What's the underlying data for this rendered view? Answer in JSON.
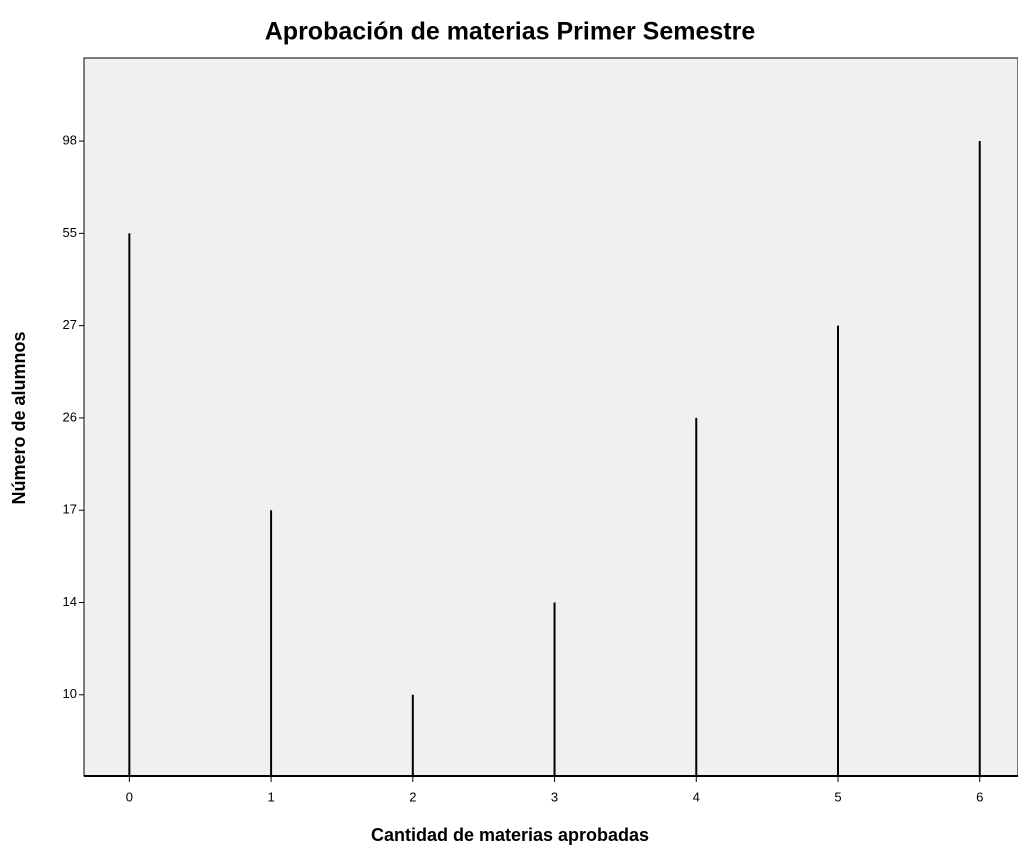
{
  "chart_data": {
    "type": "spike",
    "title": "Aprobación de materias Primer Semestre",
    "x_label": "Cantidad de materias aprobadas",
    "y_label": "Número de alumnos",
    "x": [
      0,
      1,
      2,
      3,
      4,
      5,
      6
    ],
    "values": [
      55,
      17,
      10,
      14,
      26,
      27,
      98
    ],
    "color": "#000000",
    "xlim": [
      -0.32,
      6.27
    ],
    "xticks": [
      0,
      1,
      2,
      3,
      4,
      5,
      6
    ],
    "y_scale": "ordinal",
    "yticks": [
      10,
      14,
      17,
      26,
      27,
      55,
      98
    ],
    "grid": false
  }
}
